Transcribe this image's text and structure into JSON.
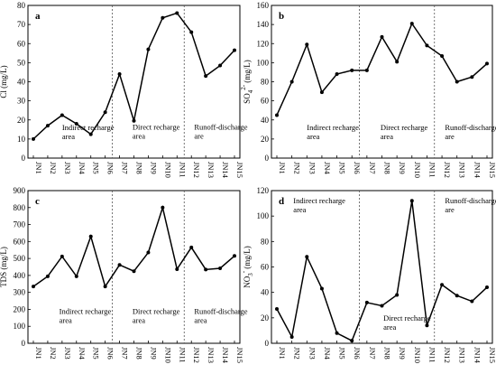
{
  "chart_data": [
    {
      "type": "line",
      "panel_label": "a",
      "ylabel": "Cl (mg/L)",
      "ylabel_sub": "",
      "ylabel_sup": "",
      "ylim": [
        0,
        80
      ],
      "yticks": [
        0,
        10,
        20,
        30,
        40,
        50,
        60,
        70,
        80
      ],
      "categories": [
        "JN1",
        "JN2",
        "JN3",
        "JN4",
        "JN5",
        "JN6",
        "JN7",
        "JN8",
        "JN9",
        "JN10",
        "JN11",
        "JN12",
        "JN13",
        "JN14",
        "JN15"
      ],
      "values": [
        10,
        17,
        22.5,
        18,
        12.5,
        24,
        44,
        19.5,
        57,
        73.5,
        76,
        66,
        43,
        48.5,
        56.5
      ],
      "dividers_after": [
        6,
        11
      ],
      "regions": [
        {
          "label": [
            "Indirect recharge",
            "area"
          ],
          "x_cat": 2,
          "y": 10
        },
        {
          "label": [
            "Direct recharge",
            "area"
          ],
          "x_cat": 6.9,
          "y": 10.2
        },
        {
          "label": [
            "Runoff-discharge",
            "are"
          ],
          "x_cat": 11.2,
          "y": 10.2
        }
      ]
    },
    {
      "type": "line",
      "panel_label": "b",
      "ylabel": "SO",
      "ylabel_sub": "4",
      "ylabel_sup": "2-",
      "ylabel_after": " (mg/L)",
      "ylim": [
        0,
        160
      ],
      "yticks": [
        0,
        20,
        40,
        60,
        80,
        100,
        120,
        140,
        160
      ],
      "categories": [
        "JN1",
        "JN2",
        "JN3",
        "JN4",
        "JN5",
        "JN6",
        "JN7",
        "JN8",
        "JN9",
        "JN10",
        "JN11",
        "JN12",
        "JN13",
        "JN14",
        "JN15"
      ],
      "values": [
        45,
        80,
        119,
        69,
        88,
        92,
        92,
        127,
        101,
        141,
        118,
        107,
        80,
        85,
        99
      ],
      "dividers_after": [
        6,
        11
      ],
      "regions": [
        {
          "label": [
            "Indirect recharge",
            "area"
          ],
          "x_cat": 2,
          "y": 20
        },
        {
          "label": [
            "Direct recharge",
            "area"
          ],
          "x_cat": 6.9,
          "y": 20
        },
        {
          "label": [
            "Runoff-discharge",
            "are"
          ],
          "x_cat": 11.2,
          "y": 20
        }
      ]
    },
    {
      "type": "line",
      "panel_label": "c",
      "ylabel": "TDS (mg/L)",
      "ylabel_sub": "",
      "ylabel_sup": "",
      "ylim": [
        0,
        900
      ],
      "yticks": [
        0,
        100,
        200,
        300,
        400,
        500,
        600,
        700,
        800,
        900
      ],
      "categories": [
        "JN1",
        "JN2",
        "JN3",
        "JN4",
        "JN5",
        "JN6",
        "JN7",
        "JN8",
        "JN9",
        "JN10",
        "JN11",
        "JN12",
        "JN13",
        "JN14",
        "JN15"
      ],
      "values": [
        335,
        395,
        512,
        395,
        630,
        335,
        462,
        425,
        535,
        800,
        437,
        565,
        435,
        442,
        515
      ],
      "dividers_after": [
        6,
        11
      ],
      "regions": [
        {
          "label": [
            "Indirect recharge",
            "area"
          ],
          "x_cat": 1.8,
          "y": 120
        },
        {
          "label": [
            "Direct recharge",
            "area"
          ],
          "x_cat": 6.9,
          "y": 120
        },
        {
          "label": [
            "Runoff-discharge",
            "area"
          ],
          "x_cat": 11.2,
          "y": 120
        }
      ]
    },
    {
      "type": "line",
      "panel_label": "d",
      "ylabel": "NO",
      "ylabel_sub": "3",
      "ylabel_sup": "-",
      "ylabel_after": " (mg/L)",
      "ylim": [
        0,
        120
      ],
      "yticks": [
        0,
        20,
        40,
        60,
        80,
        100,
        120
      ],
      "categories": [
        "JN1",
        "JN2",
        "JN3",
        "JN4",
        "JN5",
        "JN6",
        "JN7",
        "JN8",
        "JN9",
        "JN10",
        "JN11",
        "JN12",
        "JN13",
        "JN14",
        "JN15"
      ],
      "values": [
        27,
        5,
        68,
        43,
        8,
        2,
        32,
        29.5,
        38,
        112,
        14,
        46,
        37.5,
        33,
        44
      ],
      "dividers_after": [
        6,
        11
      ],
      "regions": [
        {
          "label": [
            "Indirect recharge",
            "area"
          ],
          "x_cat": 1.1,
          "y": 103
        },
        {
          "label": [
            "Direct recharge",
            "area"
          ],
          "x_cat": 7.1,
          "y": 10.5
        },
        {
          "label": [
            "Runoff-discharge",
            "are"
          ],
          "x_cat": 11.2,
          "y": 103
        }
      ]
    }
  ]
}
